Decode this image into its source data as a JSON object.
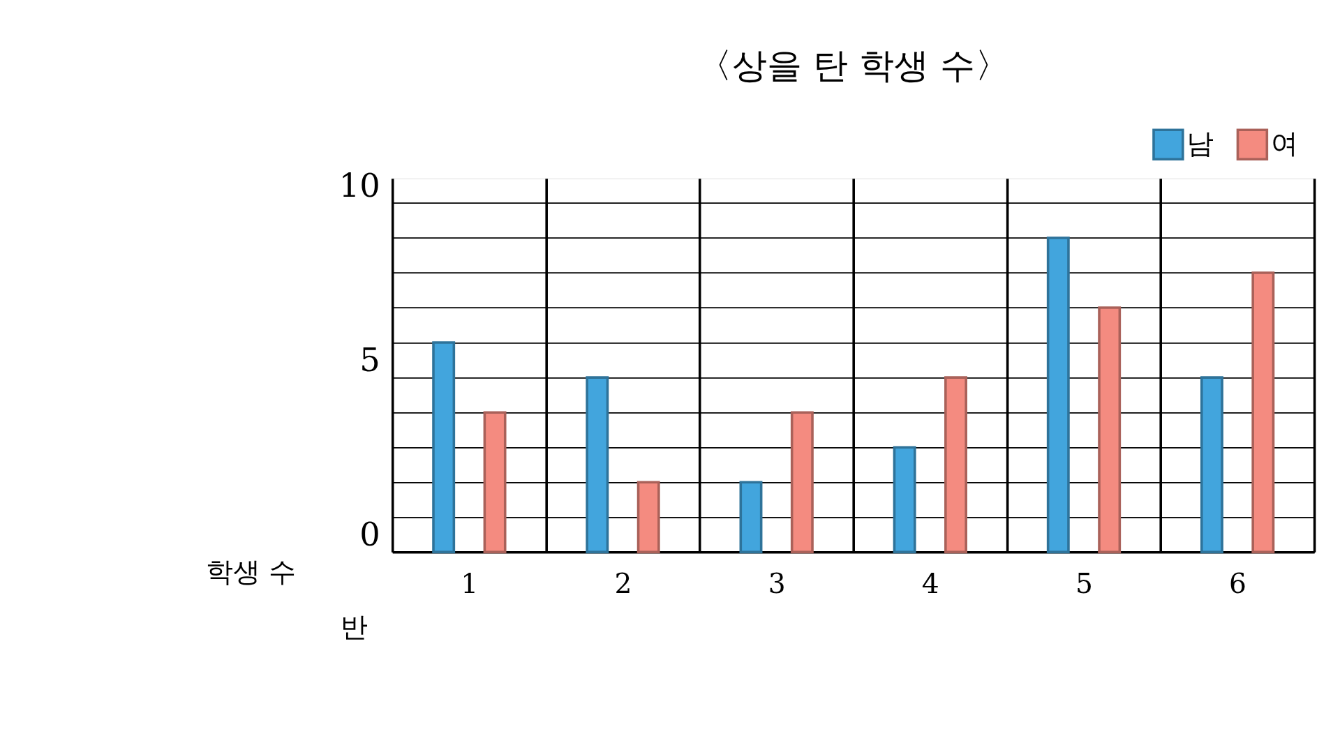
{
  "chart_data": {
    "type": "bar",
    "title": "〈상을 탄 학생 수〉",
    "xlabel": "반",
    "ylabel": "학생 수",
    "categories": [
      "1",
      "2",
      "3",
      "4",
      "5",
      "6"
    ],
    "series": [
      {
        "name": "남",
        "color": "#42a5dd",
        "values": [
          6,
          5,
          2,
          3,
          9,
          5
        ]
      },
      {
        "name": "여",
        "color": "#f48b80",
        "values": [
          4,
          2,
          4,
          5,
          7,
          8
        ]
      }
    ],
    "ylim": [
      0,
      10.7
    ],
    "yticks": [
      0,
      {
        "value": 1,
        "label": null
      },
      {
        "value": 2,
        "label": null
      },
      {
        "value": 3,
        "label": null
      },
      {
        "value": 4,
        "label": null
      },
      5,
      {
        "value": 6,
        "label": null
      },
      {
        "value": 7,
        "label": null
      },
      {
        "value": 8,
        "label": null
      },
      {
        "value": 9,
        "label": null
      },
      10
    ],
    "grid": true,
    "legend": "top right"
  }
}
